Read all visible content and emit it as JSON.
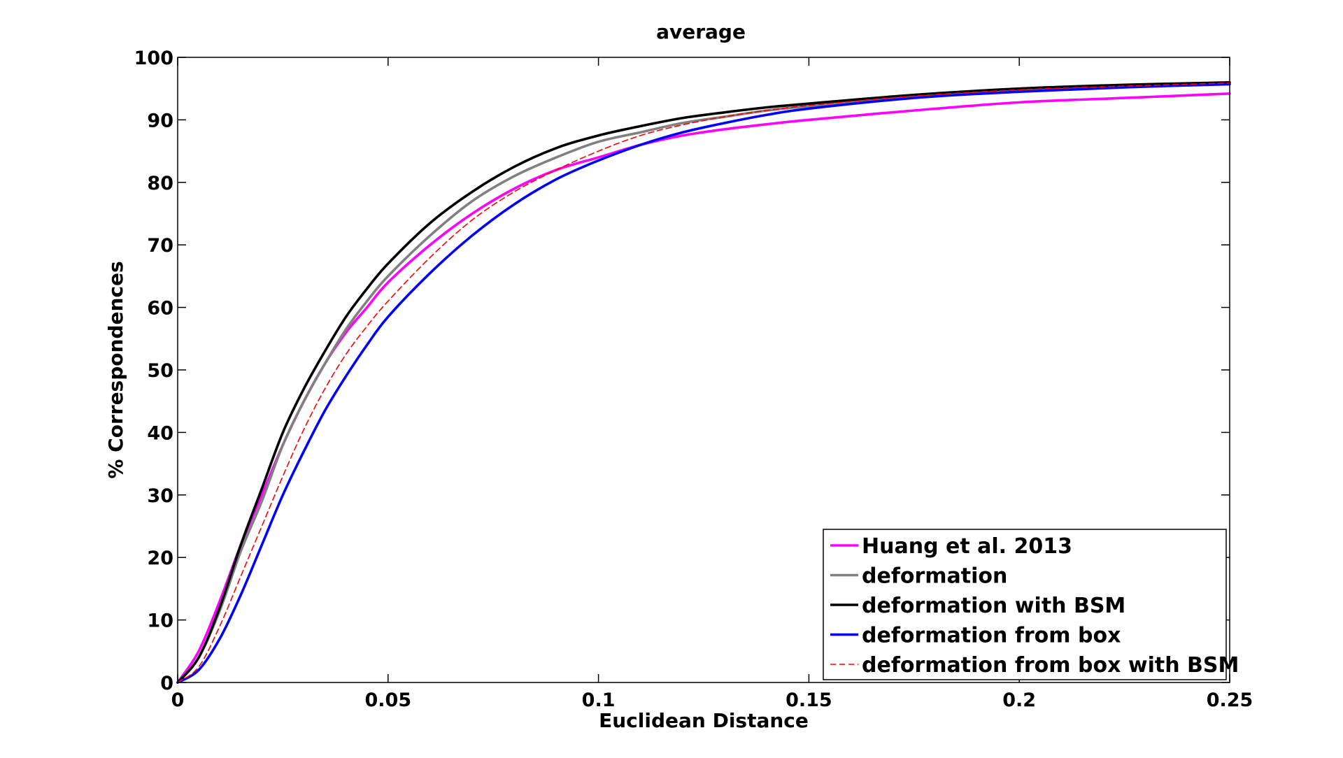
{
  "chart_data": {
    "type": "line",
    "title": "average",
    "xlabel": "Euclidean Distance",
    "ylabel": "% Correspondences",
    "xlim": [
      0,
      0.25
    ],
    "ylim": [
      0,
      100
    ],
    "xticks": [
      0,
      0.05,
      0.1,
      0.15,
      0.2,
      0.25
    ],
    "xtick_labels": [
      "0",
      "0.05",
      "0.1",
      "0.15",
      "0.2",
      "0.25"
    ],
    "yticks": [
      0,
      10,
      20,
      30,
      40,
      50,
      60,
      70,
      80,
      90,
      100
    ],
    "ytick_labels": [
      "0",
      "10",
      "20",
      "30",
      "40",
      "50",
      "60",
      "70",
      "80",
      "90",
      "100"
    ],
    "grid": false,
    "legend_position": "bottom-right",
    "x": [
      0,
      0.005,
      0.01,
      0.015,
      0.02,
      0.025,
      0.03,
      0.035,
      0.04,
      0.045,
      0.05,
      0.06,
      0.07,
      0.08,
      0.09,
      0.1,
      0.11,
      0.12,
      0.13,
      0.14,
      0.15,
      0.175,
      0.2,
      0.225,
      0.25
    ],
    "series": [
      {
        "name": "Huang et al. 2013",
        "color": "#ff00ff",
        "dash": "solid",
        "values": [
          0,
          5,
          13,
          22,
          30,
          38,
          45,
          51,
          56,
          60,
          64,
          70,
          75,
          79,
          82,
          84,
          86,
          87.5,
          88.5,
          89.3,
          90,
          91.5,
          92.8,
          93.5,
          94.2
        ]
      },
      {
        "name": "deformation",
        "color": "#808080",
        "dash": "solid",
        "values": [
          0,
          4,
          11.5,
          21,
          29,
          38,
          45,
          51,
          56.5,
          61,
          65,
          71.5,
          77,
          81,
          84,
          86.5,
          88,
          89.5,
          90.5,
          91.5,
          92.2,
          93.7,
          94.8,
          95.3,
          95.8
        ]
      },
      {
        "name": "deformation with BSM",
        "color": "#000000",
        "dash": "solid",
        "values": [
          0,
          4,
          12,
          22,
          31,
          40,
          47,
          53,
          58.5,
          63,
          67,
          73.5,
          78.5,
          82.5,
          85.5,
          87.5,
          89,
          90.3,
          91.2,
          92,
          92.6,
          94,
          95,
          95.6,
          96
        ]
      },
      {
        "name": "deformation from box",
        "color": "#0000ff",
        "dash": "solid",
        "values": [
          0,
          2,
          7,
          14,
          22,
          30,
          37,
          43.5,
          49,
          54,
          58.5,
          65.5,
          71.5,
          76.5,
          80.5,
          83.5,
          86,
          88,
          89.5,
          90.8,
          91.8,
          93.5,
          94.5,
          95.2,
          95.7
        ]
      },
      {
        "name": "deformation from box with BSM",
        "color": "#ff0000",
        "dash": "dashed",
        "values": [
          0,
          2.5,
          9,
          17,
          25,
          33,
          40.5,
          47,
          52.5,
          57,
          61,
          68,
          74,
          78.5,
          82,
          85,
          87.5,
          89.2,
          90.5,
          91.5,
          92.3,
          93.8,
          94.8,
          95.4,
          95.9
        ]
      }
    ]
  }
}
